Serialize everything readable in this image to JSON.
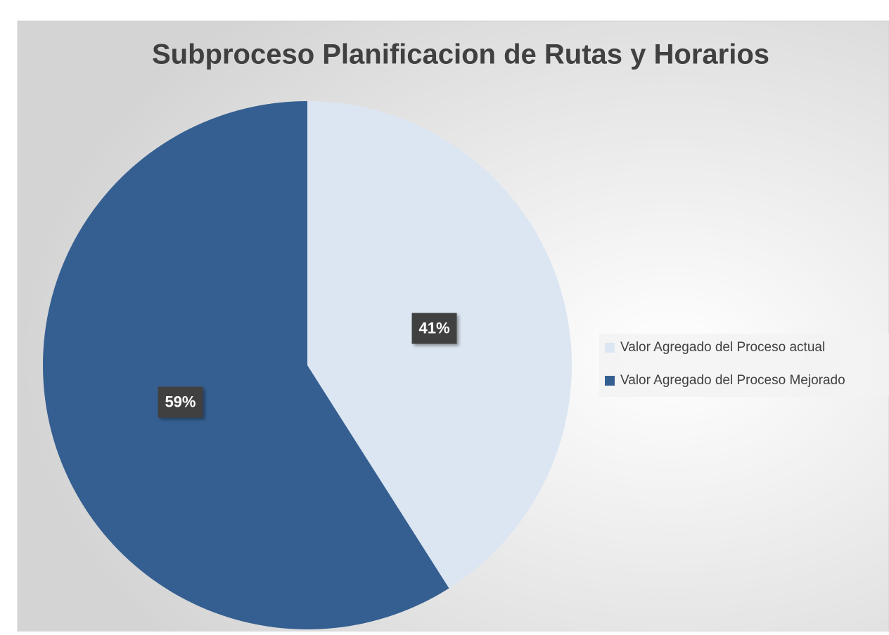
{
  "chart_data": {
    "type": "pie",
    "title": "Subproceso Planificacion de Rutas y Horarios",
    "categories": [
      "Valor Agregado del Proceso actual",
      "Valor Agregado del Proceso Mejorado"
    ],
    "values": [
      41,
      59
    ],
    "value_labels": [
      "41%",
      "59%"
    ],
    "colors": [
      "#dce6f2",
      "#355f91"
    ],
    "legend": "right"
  }
}
